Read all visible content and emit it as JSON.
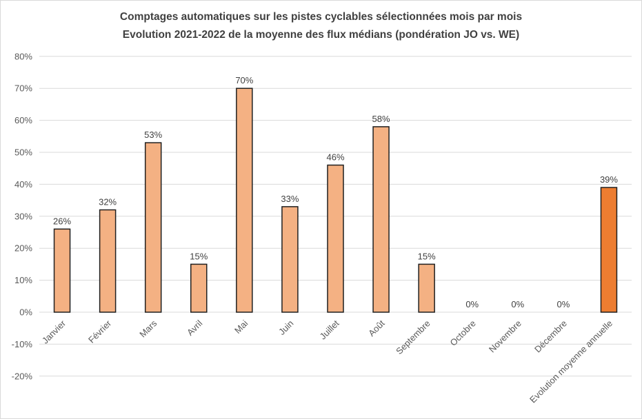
{
  "chart": {
    "title_line1": "Comptages automatiques sur les pistes cyclables sélectionnées mois par mois",
    "title_line2": "Evolution 2021-2022 de la moyenne des flux médians (pondération JO vs. WE)"
  },
  "chart_data": {
    "type": "bar",
    "title": "Comptages automatiques sur les pistes cyclables sélectionnées mois par mois — Evolution 2021-2022 de la moyenne des flux médians (pondération JO vs. WE)",
    "categories": [
      "Janvier",
      "Février",
      "Mars",
      "Avril",
      "Mai",
      "Juin",
      "Juillet",
      "Août",
      "Septembre",
      "Octobre",
      "Novembre",
      "Décembre",
      "Evolution moyenne annuelle"
    ],
    "values": [
      26,
      32,
      53,
      15,
      70,
      33,
      46,
      58,
      15,
      0,
      0,
      0,
      39
    ],
    "value_labels": [
      "26%",
      "32%",
      "53%",
      "15%",
      "70%",
      "33%",
      "46%",
      "58%",
      "15%",
      "0%",
      "0%",
      "0%",
      "39%"
    ],
    "highlight_index": 12,
    "xlabel": "",
    "ylabel": "",
    "ylim": [
      -20,
      80
    ],
    "ytick_values": [
      80,
      70,
      60,
      50,
      40,
      30,
      20,
      10,
      0,
      -10,
      -20
    ],
    "ytick_labels": [
      "80%",
      "70%",
      "60%",
      "50%",
      "40%",
      "30%",
      "20%",
      "10%",
      "0%",
      "-10%",
      "-20%"
    ],
    "grid": true,
    "legend": "none",
    "colors": {
      "bar_fill": "#F4B183",
      "bar_border": "#1F1F1F",
      "highlight_fill": "#ED7D31",
      "gridline": "#D9D9D9",
      "title_text": "#404040",
      "axis_text": "#595959",
      "value_label_text": "#404040",
      "background": "#FFFFFF",
      "canvas_border": "#D9D9D9"
    }
  }
}
